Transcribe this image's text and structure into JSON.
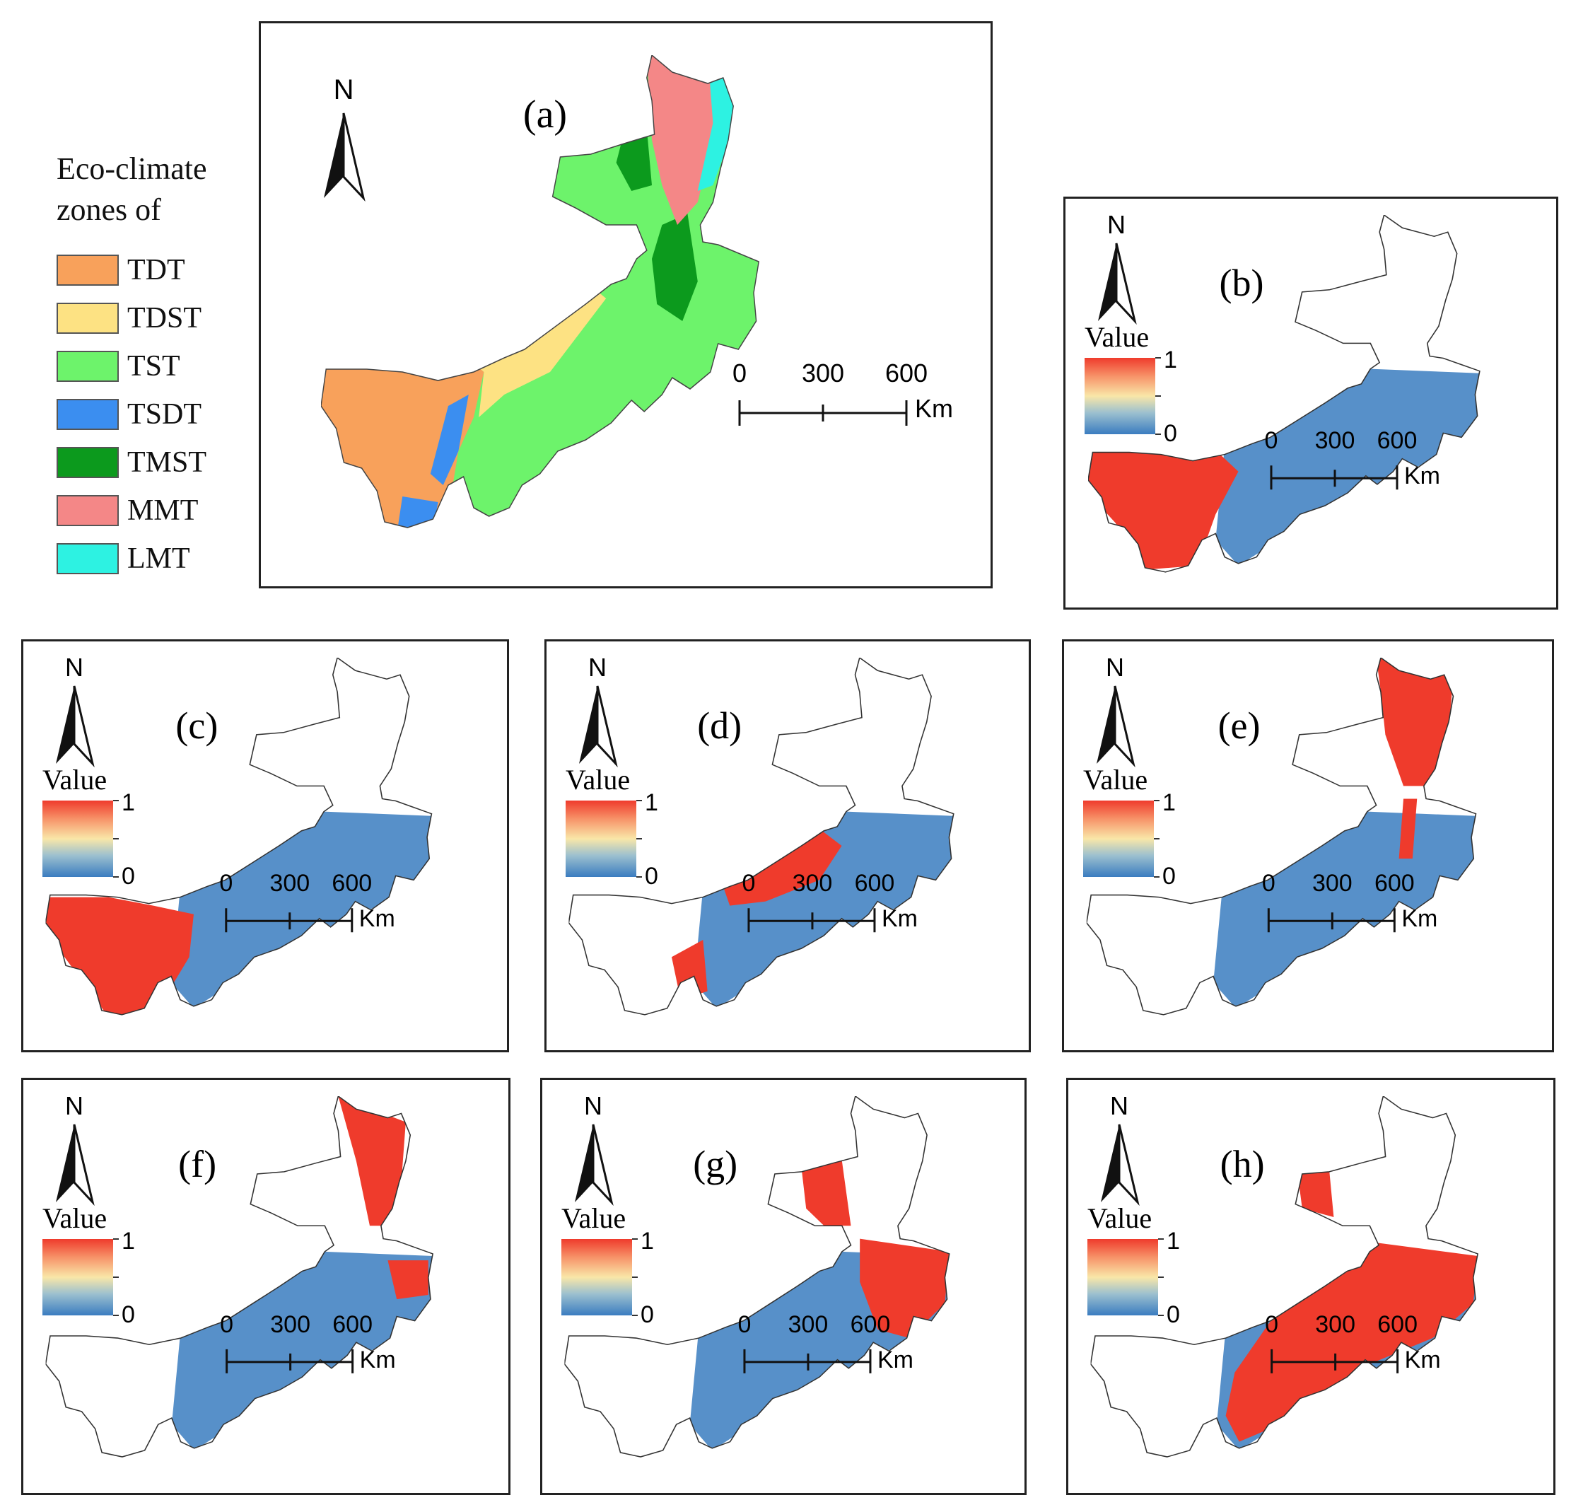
{
  "legend": {
    "title": "Eco-climate\nzones of",
    "items": [
      {
        "code": "TDT",
        "color": "#f8a15b"
      },
      {
        "code": "TDST",
        "color": "#fde283"
      },
      {
        "code": "TST",
        "color": "#6df36b"
      },
      {
        "code": "TSDT",
        "color": "#3b8ef0"
      },
      {
        "code": "TMST",
        "color": "#0c9a1d"
      },
      {
        "code": "MMT",
        "color": "#f48787"
      },
      {
        "code": "LMT",
        "color": "#2df2e2"
      }
    ]
  },
  "north_label": "N",
  "value_title": "Value",
  "colorbar": {
    "max": "1",
    "min": "0",
    "colors": [
      "#ef3b2c",
      "#f9e7a8",
      "#3a7cc0"
    ]
  },
  "scalebar": {
    "ticks": [
      "0",
      "300",
      "600"
    ],
    "unit": "Km"
  },
  "panels": [
    {
      "label": "(a)",
      "type": "zones"
    },
    {
      "label": "(b)",
      "type": "value",
      "hotspot": "west"
    },
    {
      "label": "(c)",
      "type": "value",
      "hotspot": "west-south"
    },
    {
      "label": "(d)",
      "type": "value",
      "hotspot": "center"
    },
    {
      "label": "(e)",
      "type": "value",
      "hotspot": "northeast"
    },
    {
      "label": "(f)",
      "type": "value",
      "hotspot": "northeast-east"
    },
    {
      "label": "(g)",
      "type": "value",
      "hotspot": "east"
    },
    {
      "label": "(h)",
      "type": "value",
      "hotspot": "center-east"
    }
  ]
}
